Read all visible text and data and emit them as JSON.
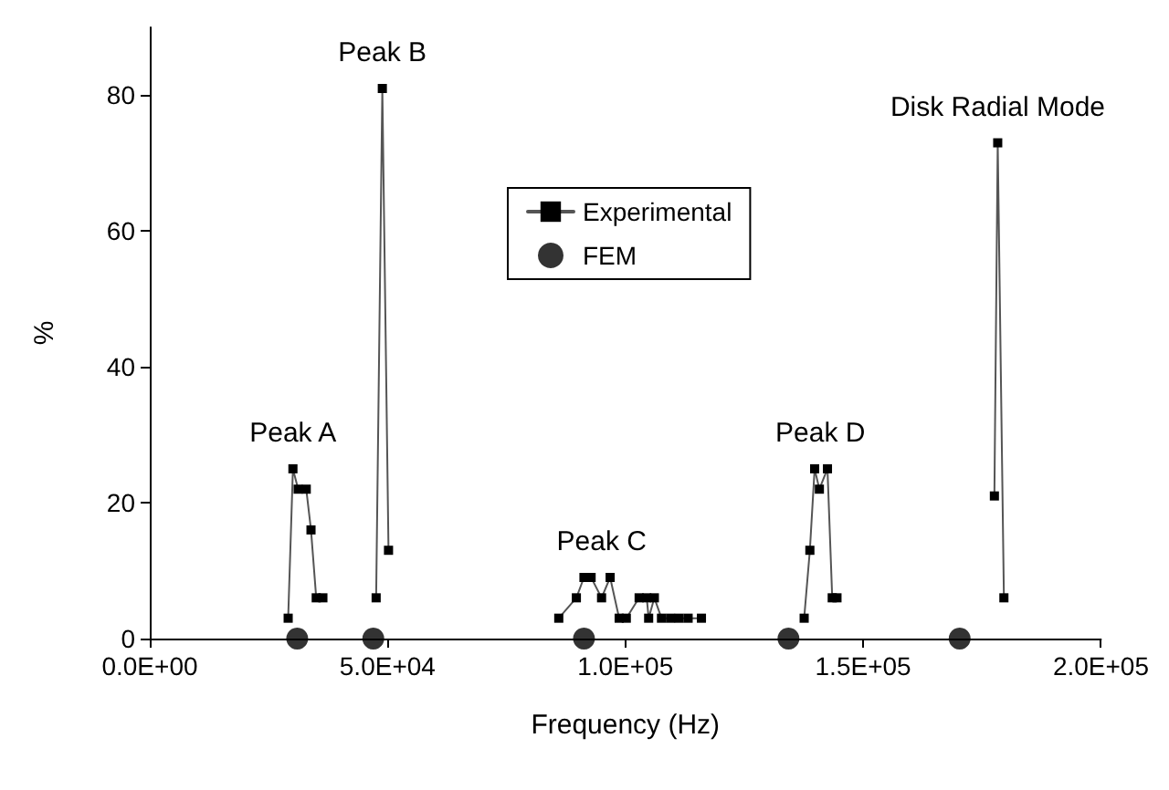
{
  "chart_data": {
    "type": "line",
    "xlabel": "Frequency (Hz)",
    "ylabel": "%",
    "xlim": [
      0,
      200000
    ],
    "ylim": [
      0,
      90
    ],
    "xticks": [
      {
        "value": 0,
        "label": "0.0E+00"
      },
      {
        "value": 50000,
        "label": "5.0E+04"
      },
      {
        "value": 100000,
        "label": "1.0E+05"
      },
      {
        "value": 150000,
        "label": "1.5E+05"
      },
      {
        "value": 200000,
        "label": "2.0E+05"
      }
    ],
    "yticks": [
      0,
      20,
      40,
      60,
      80
    ],
    "grid": false,
    "legend": "top",
    "series": [
      {
        "name": "Experimental",
        "marker": "square",
        "line_style": "solid",
        "color": "#000000",
        "x": [
          29100,
          30100,
          31200,
          32900,
          33900,
          35000,
          36400,
          null,
          47600,
          48900,
          50200,
          null,
          86000,
          89700,
          91300,
          92800,
          95000,
          96800,
          98700,
          100200,
          102900,
          104500,
          104900,
          106100,
          107600,
          109500,
          111300,
          113200,
          116000,
          null,
          137600,
          138800,
          139800,
          140800,
          142500,
          143500,
          144500,
          null,
          177600,
          178300,
          179600
        ],
        "values": [
          3,
          25,
          22,
          22,
          16,
          6,
          6,
          null,
          6,
          81,
          13,
          null,
          3,
          6,
          9,
          9,
          6,
          9,
          3,
          3,
          6,
          6,
          3,
          6,
          3,
          3,
          3,
          3,
          3,
          null,
          3,
          13,
          25,
          22,
          25,
          6,
          6,
          null,
          21,
          73,
          6
        ]
      },
      {
        "name": "FEM",
        "type": "scatter",
        "marker": "circle",
        "color": "#000000",
        "x": [
          31000,
          47000,
          91300,
          134300,
          170300
        ],
        "values": [
          0,
          0,
          0,
          0,
          0
        ]
      }
    ],
    "annotations": [
      {
        "text": "Peak A",
        "x": 30100,
        "y": 25
      },
      {
        "text": "Peak B",
        "x": 48900,
        "y": 81
      },
      {
        "text": "Peak C",
        "x": 95000,
        "y": 9
      },
      {
        "text": "Peak D",
        "x": 141000,
        "y": 25
      },
      {
        "text": "Disk Radial Mode",
        "x": 178300,
        "y": 73
      }
    ]
  }
}
